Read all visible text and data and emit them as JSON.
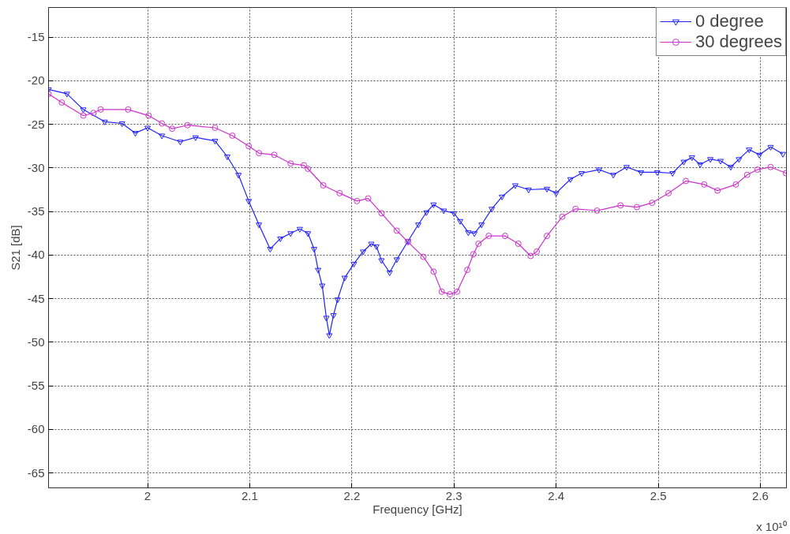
{
  "chart_data": {
    "type": "line",
    "xlabel": "Frequency [GHz]",
    "ylabel": "S21 [dB]",
    "annotations": [
      "x 10¹⁰"
    ],
    "xlim": [
      1.903,
      2.6255
    ],
    "ylim": [
      -66.7,
      -11.6
    ],
    "xticks": [
      2,
      2.1,
      2.2,
      2.3,
      2.4,
      2.5,
      2.6
    ],
    "yticks": [
      -65,
      -60,
      -55,
      -50,
      -45,
      -40,
      -35,
      -30,
      -25,
      -20,
      -15
    ],
    "grid": true,
    "legend": "top right",
    "line_style": "solid",
    "series": [
      {
        "name": "0 degree",
        "color": "#2020ff",
        "marker": "triangle",
        "x": [
          1.903,
          1.921,
          1.937,
          1.958,
          1.975,
          1.988,
          2.0,
          2.014,
          2.032,
          2.047,
          2.066,
          2.078,
          2.089,
          2.099,
          2.109,
          2.12,
          2.13,
          2.14,
          2.149,
          2.157,
          2.163,
          2.167,
          2.171,
          2.175,
          2.178,
          2.182,
          2.186,
          2.193,
          2.202,
          2.211,
          2.219,
          2.224,
          2.229,
          2.237,
          2.244,
          2.255,
          2.265,
          2.273,
          2.28,
          2.29,
          2.3,
          2.306,
          2.314,
          2.32,
          2.327,
          2.337,
          2.347,
          2.36,
          2.373,
          2.391,
          2.4,
          2.414,
          2.425,
          2.442,
          2.456,
          2.469,
          2.483,
          2.499,
          2.514,
          2.525,
          2.533,
          2.541,
          2.551,
          2.561,
          2.571,
          2.579,
          2.589,
          2.599,
          2.61,
          2.622
        ],
        "values": [
          -21.0,
          -21.5,
          -23.3,
          -24.7,
          -24.9,
          -26.0,
          -25.4,
          -26.3,
          -27.0,
          -26.5,
          -26.9,
          -28.7,
          -30.8,
          -33.8,
          -36.5,
          -39.3,
          -38.1,
          -37.5,
          -37.0,
          -37.5,
          -39.3,
          -41.7,
          -43.5,
          -47.2,
          -49.2,
          -46.9,
          -45.1,
          -42.6,
          -41.0,
          -39.6,
          -38.7,
          -39.0,
          -40.6,
          -42.0,
          -40.5,
          -38.4,
          -36.5,
          -35.1,
          -34.2,
          -34.9,
          -35.2,
          -36.1,
          -37.4,
          -37.5,
          -36.5,
          -34.7,
          -33.3,
          -32.0,
          -32.5,
          -32.4,
          -32.9,
          -31.3,
          -30.6,
          -30.2,
          -30.8,
          -29.9,
          -30.5,
          -30.5,
          -30.6,
          -29.3,
          -28.8,
          -29.6,
          -29.0,
          -29.2,
          -29.9,
          -29.0,
          -27.9,
          -28.5,
          -27.6,
          -28.4
        ]
      },
      {
        "name": "30 degrees",
        "color": "#cc33cc",
        "marker": "circle",
        "x": [
          1.903,
          1.916,
          1.937,
          1.947,
          1.954,
          1.981,
          2.001,
          2.014,
          2.024,
          2.039,
          2.066,
          2.083,
          2.099,
          2.109,
          2.124,
          2.14,
          2.153,
          2.157,
          2.172,
          2.188,
          2.205,
          2.216,
          2.229,
          2.244,
          2.255,
          2.27,
          2.28,
          2.288,
          2.296,
          2.303,
          2.313,
          2.319,
          2.324,
          2.334,
          2.35,
          2.363,
          2.375,
          2.381,
          2.391,
          2.406,
          2.419,
          2.44,
          2.463,
          2.479,
          2.494,
          2.51,
          2.527,
          2.545,
          2.558,
          2.576,
          2.587,
          2.597,
          2.61,
          2.625
        ],
        "values": [
          -21.5,
          -22.5,
          -24.0,
          -23.7,
          -23.3,
          -23.3,
          -24.0,
          -24.9,
          -25.5,
          -25.1,
          -25.4,
          -26.3,
          -27.5,
          -28.3,
          -28.5,
          -29.5,
          -29.7,
          -30.1,
          -32.0,
          -32.9,
          -33.8,
          -33.5,
          -35.2,
          -37.2,
          -38.5,
          -40.2,
          -41.9,
          -44.2,
          -44.5,
          -44.2,
          -41.7,
          -39.9,
          -38.7,
          -37.8,
          -37.8,
          -38.7,
          -40.1,
          -39.6,
          -37.8,
          -35.6,
          -34.7,
          -34.9,
          -34.3,
          -34.5,
          -34.0,
          -32.9,
          -31.5,
          -31.9,
          -32.6,
          -31.9,
          -30.8,
          -30.2,
          -29.9,
          -30.6
        ]
      }
    ]
  }
}
